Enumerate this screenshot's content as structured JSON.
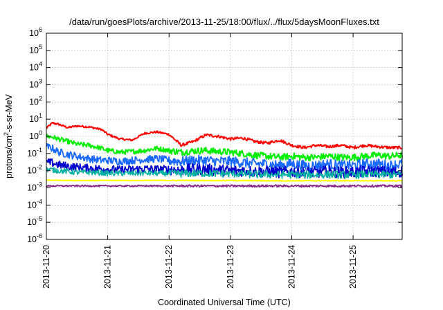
{
  "chart_data": {
    "type": "line",
    "title": "/data/run/goesPlots/archive/2013-11-25/18:00/flux/../flux/5daysMoonFluxes.txt",
    "xlabel": "Coordinated Universal Time (UTC)",
    "ylabel": "protons/cm²-s-sr-MeV",
    "yscale": "log",
    "ylim": [
      1e-06,
      1000000.0
    ],
    "xlim": [
      0,
      5.8
    ],
    "x_unit": "days since 2013-11-20 00:00 UTC",
    "x_ticks": [
      {
        "value": 0,
        "label": "2013-11-20"
      },
      {
        "value": 1,
        "label": "2013-11-21"
      },
      {
        "value": 2,
        "label": "2013-11-22"
      },
      {
        "value": 3,
        "label": "2013-11-23"
      },
      {
        "value": 4,
        "label": "2013-11-24"
      },
      {
        "value": 5,
        "label": "2013-11-25"
      }
    ],
    "y_ticks": [
      {
        "value": 1e-06,
        "base": "10",
        "exp": "-6"
      },
      {
        "value": 1e-05,
        "base": "10",
        "exp": "-5"
      },
      {
        "value": 0.0001,
        "base": "10",
        "exp": "-4"
      },
      {
        "value": 0.001,
        "base": "10",
        "exp": "-3"
      },
      {
        "value": 0.01,
        "base": "10",
        "exp": "-2"
      },
      {
        "value": 0.1,
        "base": "10",
        "exp": "-1"
      },
      {
        "value": 1,
        "base": "10",
        "exp": "0"
      },
      {
        "value": 10,
        "base": "10",
        "exp": "1"
      },
      {
        "value": 100,
        "base": "10",
        "exp": "2"
      },
      {
        "value": 1000,
        "base": "10",
        "exp": "3"
      },
      {
        "value": 10000,
        "base": "10",
        "exp": "4"
      },
      {
        "value": 100000,
        "base": "10",
        "exp": "5"
      },
      {
        "value": 1000000,
        "base": "10",
        "exp": "6"
      }
    ],
    "grid": true,
    "legend": "none",
    "series": [
      {
        "color": "#ff0000",
        "x": [
          0,
          0.1,
          0.2,
          0.35,
          0.5,
          0.7,
          0.9,
          1.0,
          1.2,
          1.4,
          1.6,
          1.8,
          2.0,
          2.2,
          2.4,
          2.6,
          2.8,
          3.0,
          3.2,
          3.4,
          3.6,
          3.8,
          4.0,
          4.2,
          4.4,
          4.6,
          4.8,
          5.0,
          5.2,
          5.4,
          5.6,
          5.8
        ],
        "values": [
          3.0,
          6.0,
          5.0,
          3.2,
          4.0,
          3.5,
          2.5,
          1.3,
          0.7,
          0.6,
          1.5,
          1.8,
          1.3,
          0.3,
          0.5,
          1.2,
          1.0,
          0.7,
          0.8,
          0.5,
          0.4,
          0.6,
          0.3,
          0.22,
          0.3,
          0.25,
          0.3,
          0.22,
          0.3,
          0.25,
          0.22,
          0.22
        ]
      },
      {
        "color": "#00ee00",
        "x": [
          0,
          0.1,
          0.2,
          0.35,
          0.5,
          0.7,
          0.9,
          1.0,
          1.2,
          1.4,
          1.6,
          1.8,
          2.0,
          2.2,
          2.4,
          2.6,
          2.8,
          3.0,
          3.2,
          3.4,
          3.6,
          3.8,
          4.0,
          4.2,
          4.4,
          4.6,
          4.8,
          5.0,
          5.2,
          5.4,
          5.6,
          5.8
        ],
        "values": [
          1.0,
          0.9,
          0.7,
          0.5,
          0.35,
          0.3,
          0.2,
          0.15,
          0.12,
          0.13,
          0.15,
          0.2,
          0.15,
          0.12,
          0.14,
          0.15,
          0.13,
          0.12,
          0.1,
          0.08,
          0.07,
          0.06,
          0.07,
          0.06,
          0.06,
          0.07,
          0.06,
          0.06,
          0.07,
          0.08,
          0.07,
          0.08
        ]
      },
      {
        "color": "#1a6aff",
        "x": [
          0,
          0.1,
          0.2,
          0.35,
          0.5,
          0.7,
          0.9,
          1.0,
          1.2,
          1.4,
          1.6,
          1.8,
          2.0,
          2.2,
          2.4,
          2.6,
          2.8,
          3.0,
          3.2,
          3.4,
          3.6,
          3.8,
          4.0,
          4.2,
          4.4,
          4.6,
          4.8,
          5.0,
          5.2,
          5.4,
          5.6,
          5.8
        ],
        "values": [
          0.25,
          0.2,
          0.12,
          0.09,
          0.07,
          0.05,
          0.04,
          0.04,
          0.035,
          0.04,
          0.045,
          0.05,
          0.04,
          0.035,
          0.04,
          0.04,
          0.035,
          0.035,
          0.03,
          0.025,
          0.025,
          0.02,
          0.025,
          0.02,
          0.02,
          0.025,
          0.02,
          0.02,
          0.025,
          0.025,
          0.02,
          0.025
        ]
      },
      {
        "color": "#0000cc",
        "x": [
          0,
          0.1,
          0.2,
          0.35,
          0.5,
          0.7,
          0.9,
          1.0,
          1.2,
          1.4,
          1.6,
          1.8,
          2.0,
          2.2,
          2.4,
          2.6,
          2.8,
          3.0,
          3.2,
          3.4,
          3.6,
          3.8,
          4.0,
          4.2,
          4.4,
          4.6,
          4.8,
          5.0,
          5.2,
          5.4,
          5.6,
          5.8
        ],
        "values": [
          0.03,
          0.028,
          0.022,
          0.018,
          0.016,
          0.014,
          0.013,
          0.012,
          0.011,
          0.012,
          0.013,
          0.012,
          0.012,
          0.011,
          0.012,
          0.012,
          0.011,
          0.01,
          0.01,
          0.009,
          0.009,
          0.008,
          0.009,
          0.008,
          0.008,
          0.009,
          0.008,
          0.008,
          0.009,
          0.009,
          0.008,
          0.009
        ]
      },
      {
        "color": "#00b0a0",
        "x": [
          0,
          0.1,
          0.2,
          0.35,
          0.5,
          0.7,
          0.9,
          1.0,
          1.2,
          1.4,
          1.6,
          1.8,
          2.0,
          2.2,
          2.4,
          2.6,
          2.8,
          3.0,
          3.2,
          3.4,
          3.6,
          3.8,
          4.0,
          4.2,
          4.4,
          4.6,
          4.8,
          5.0,
          5.2,
          5.4,
          5.6,
          5.8
        ],
        "values": [
          0.012,
          0.011,
          0.01,
          0.009,
          0.008,
          0.008,
          0.0075,
          0.007,
          0.007,
          0.007,
          0.0072,
          0.007,
          0.007,
          0.0068,
          0.007,
          0.007,
          0.0068,
          0.0065,
          0.0065,
          0.006,
          0.006,
          0.0058,
          0.006,
          0.0058,
          0.0058,
          0.006,
          0.0058,
          0.0058,
          0.006,
          0.006,
          0.0058,
          0.006
        ]
      },
      {
        "color": "#ffff00",
        "x": [
          0,
          0.5,
          1.0,
          1.5,
          2.0,
          2.5,
          3.0,
          3.5,
          4.0,
          4.5,
          5.0,
          5.5,
          5.8
        ],
        "values": [
          0.0028,
          0.0027,
          0.0027,
          0.0027,
          0.0027,
          0.0027,
          0.0027,
          0.0026,
          0.0026,
          0.0026,
          0.0026,
          0.0026,
          0.0026
        ]
      },
      {
        "color": "#8b2e8b",
        "x": [
          0,
          0.5,
          1.0,
          1.5,
          2.0,
          2.5,
          3.0,
          3.5,
          4.0,
          4.5,
          5.0,
          5.5,
          5.8
        ],
        "values": [
          0.0013,
          0.0013,
          0.0013,
          0.0013,
          0.0013,
          0.0013,
          0.0013,
          0.0013,
          0.0013,
          0.0013,
          0.0013,
          0.0013,
          0.0013
        ]
      }
    ]
  }
}
